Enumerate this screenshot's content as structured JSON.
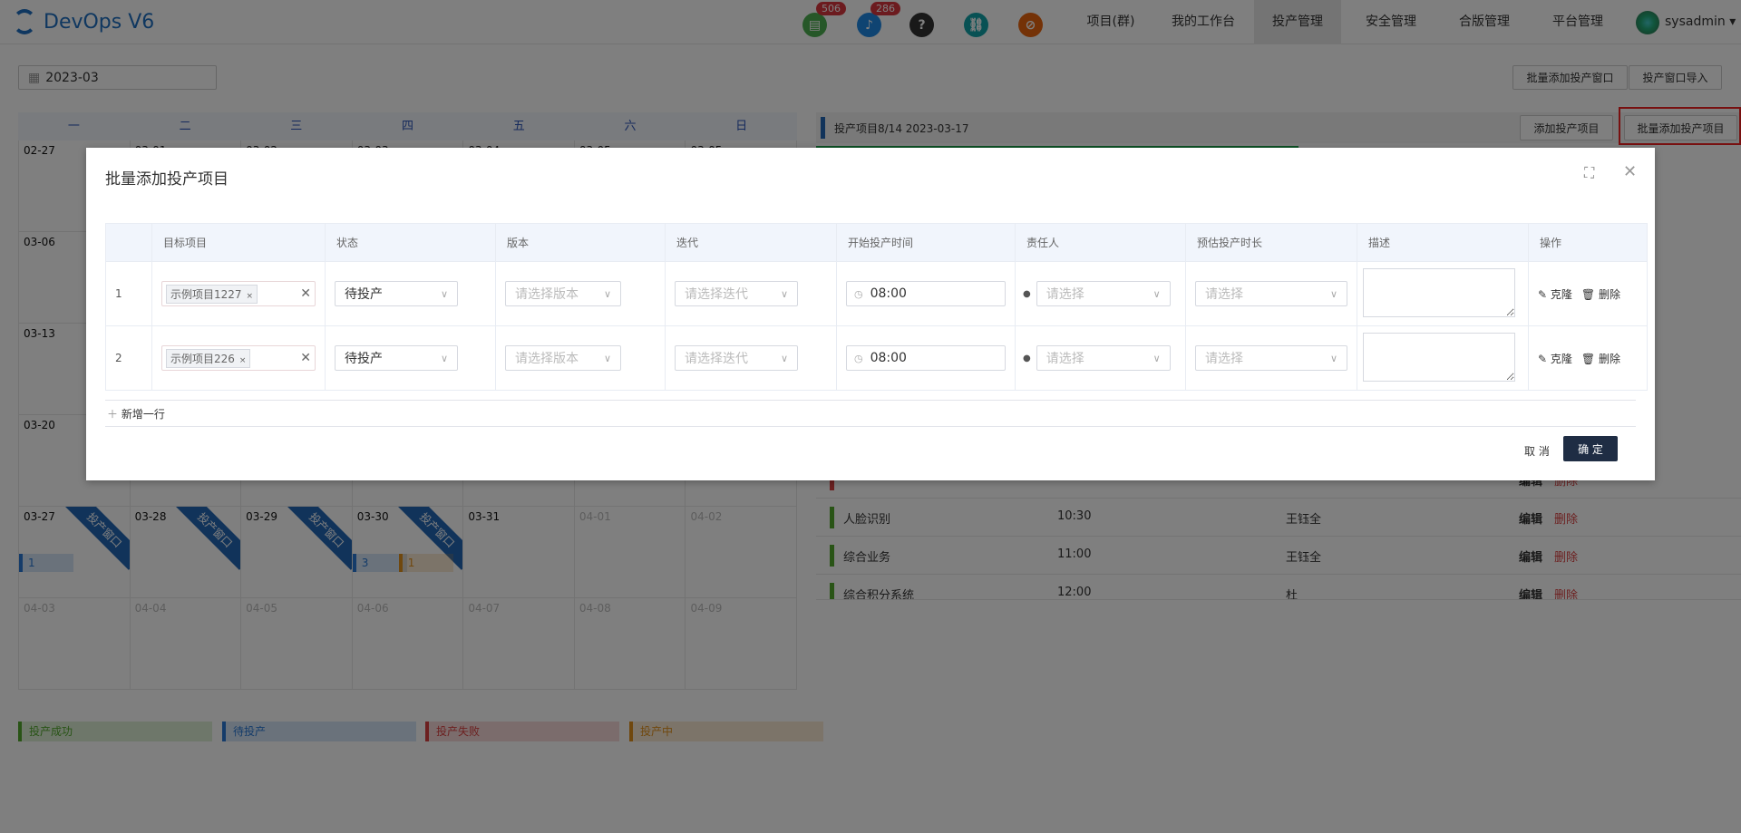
{
  "header": {
    "brand": "DevOps V6",
    "icons": [
      {
        "name": "doc-icon",
        "glyph": "▤",
        "color": "#4caf50",
        "badge": "506"
      },
      {
        "name": "bell-icon",
        "glyph": "♪",
        "color": "#1e88e5",
        "badge": "286"
      },
      {
        "name": "help-icon",
        "glyph": "?",
        "color": "#333333"
      },
      {
        "name": "link-icon",
        "glyph": "⛓",
        "color": "#11a3a8"
      },
      {
        "name": "forbidden-icon",
        "glyph": "⊘",
        "color": "#e8650e"
      }
    ],
    "nav": [
      "项目(群)",
      "我的工作台",
      "投产管理",
      "安全管理",
      "合版管理",
      "平台管理"
    ],
    "active_nav": "投产管理",
    "user": "sysadmin"
  },
  "toolbar": {
    "month": "2023-03",
    "batch_window": "批量添加投产窗口",
    "import_window": "投产窗口导入"
  },
  "calendar": {
    "weekdays": [
      "一",
      "二",
      "三",
      "四",
      "五",
      "六",
      "日"
    ],
    "weeks": [
      [
        "02-27",
        "03-01",
        "03-02",
        "03-03",
        "03-04",
        "03-05",
        "03-05"
      ],
      [
        "03-06",
        "",
        "",
        "",
        "",
        "",
        ""
      ],
      [
        "03-13",
        "",
        "",
        "",
        "",
        "",
        ""
      ],
      [
        "03-20",
        "",
        "",
        "",
        "",
        "",
        ""
      ],
      [
        "03-27",
        "03-28",
        "03-29",
        "03-30",
        "03-31",
        "04-01",
        "04-02"
      ],
      [
        "04-03",
        "04-04",
        "04-05",
        "04-06",
        "04-07",
        "04-08",
        "04-09"
      ]
    ],
    "window_label": "投产窗口",
    "window_days": [
      "03-27",
      "03-28",
      "03-29",
      "03-30"
    ],
    "chips": [
      {
        "day": "03-27",
        "count": "1",
        "status": "pending"
      },
      {
        "day": "03-30",
        "count": "3",
        "status": "pending"
      },
      {
        "day": "03-30",
        "count": "1",
        "status": "running"
      }
    ]
  },
  "legend": [
    {
      "label": "投产成功",
      "color": "#52a82c"
    },
    {
      "label": "待投产",
      "color": "#2a78d4"
    },
    {
      "label": "投产失败",
      "color": "#d94141"
    },
    {
      "label": "投产中",
      "color": "#e0901c"
    }
  ],
  "right": {
    "title": "投产项目8/14 2023-03-17",
    "add": "添加投产项目",
    "batch_add": "批量添加投产项目",
    "progress": 0.57,
    "rows": [
      {
        "name": "",
        "time": "",
        "owner": "",
        "color": "#d94141"
      },
      {
        "name": "人脸识别",
        "time": "10:30",
        "owner": "王钰全",
        "color": "#52a82c"
      },
      {
        "name": "综合业务",
        "time": "11:00",
        "owner": "王钰全",
        "color": "#52a82c"
      },
      {
        "name": "综合积分系统",
        "time": "12:00",
        "owner": "杜",
        "color": "#52a82c"
      }
    ],
    "edit": "编辑",
    "delete": "删除"
  },
  "modal": {
    "title": "批量添加投产项目",
    "columns": [
      "",
      "目标项目",
      "状态",
      "版本",
      "迭代",
      "开始投产时间",
      "责任人",
      "预估投产时长",
      "描述",
      "操作"
    ],
    "rows": [
      {
        "index": "1",
        "project": "示例项目1227",
        "status": "待投产",
        "time": "08:00"
      },
      {
        "index": "2",
        "project": "示例项目226",
        "status": "待投产",
        "time": "08:00"
      }
    ],
    "version_ph": "请选择版本",
    "iteration_ph": "请选择迭代",
    "owner_ph": "请选择",
    "duration_ph": "请选择",
    "clone": "克隆",
    "delete": "删除",
    "add_row": "新增一行",
    "cancel": "取 消",
    "ok": "确 定"
  }
}
